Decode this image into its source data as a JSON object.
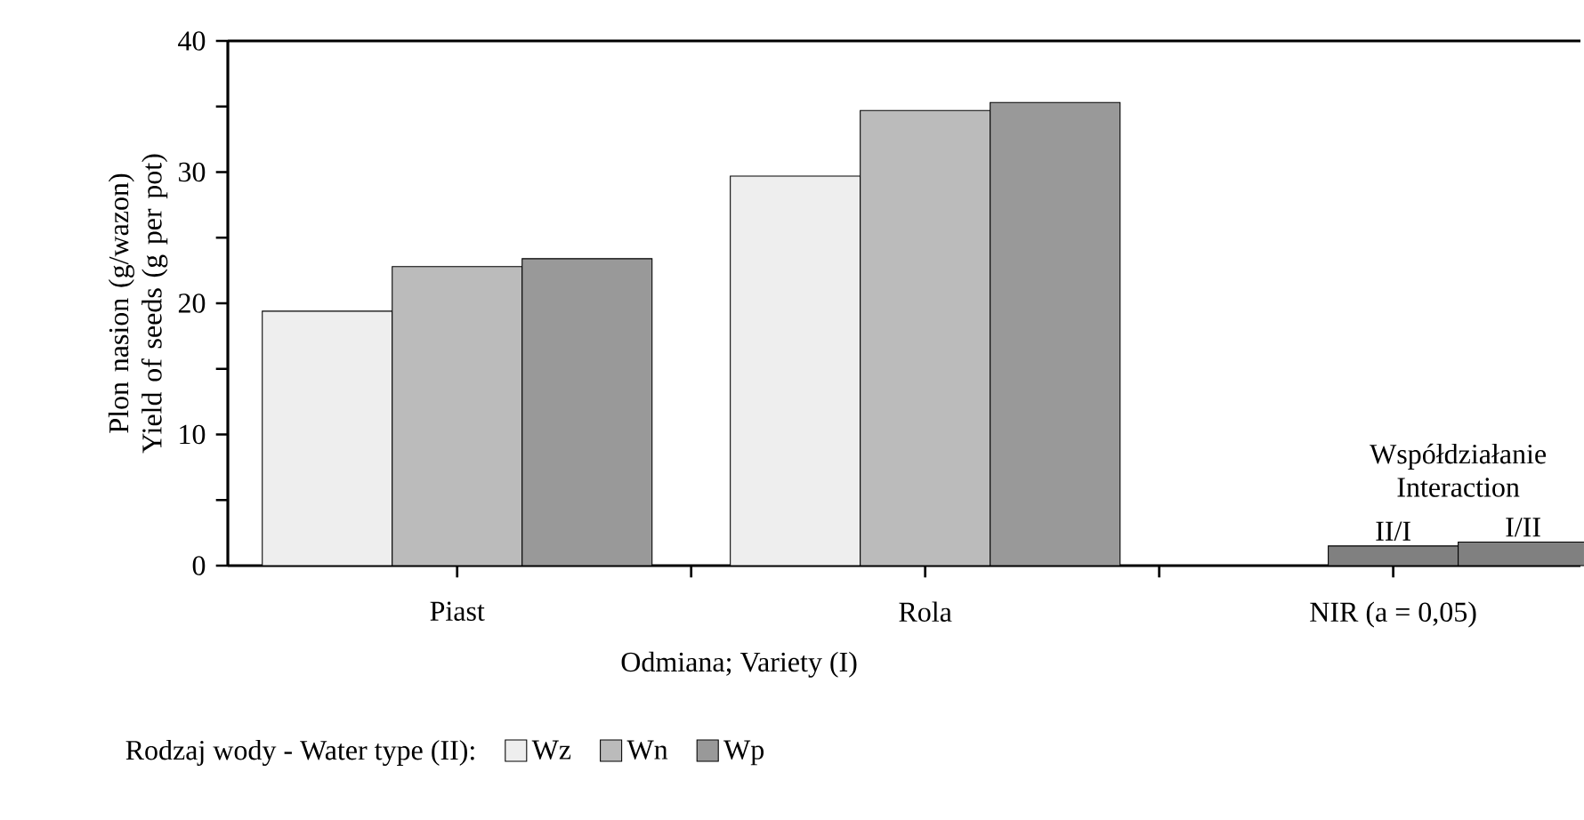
{
  "chart_data": {
    "type": "bar",
    "xlabel": "Odmiana; Variety (I)",
    "ylabel": "Plon nasion (g/wazon) Yield of seeds (g per pot)",
    "legend_title": "Rodzaj wody - Water type (II):",
    "legend": "bottom",
    "categories": [
      "Piast",
      "Rola",
      "NIR (a = 0,05)"
    ],
    "series": [
      {
        "name": "Wz",
        "color": "#eeeeee",
        "values": [
          19.4,
          29.7,
          null
        ]
      },
      {
        "name": "Wn",
        "color": "#bbbbbb",
        "values": [
          22.8,
          34.7,
          null
        ]
      },
      {
        "name": "Wp",
        "color": "#999999",
        "values": [
          23.4,
          35.3,
          null
        ]
      },
      {
        "name": "II/I",
        "color": "#808080",
        "values": [
          null,
          null,
          1.5
        ]
      },
      {
        "name": "I/II",
        "color": "#808080",
        "values": [
          null,
          null,
          1.8
        ]
      }
    ],
    "annotations": [
      "Współdziałanie Interaction"
    ],
    "ylim": [
      0,
      40
    ],
    "yticks": [
      0,
      10,
      20,
      30,
      40
    ]
  }
}
